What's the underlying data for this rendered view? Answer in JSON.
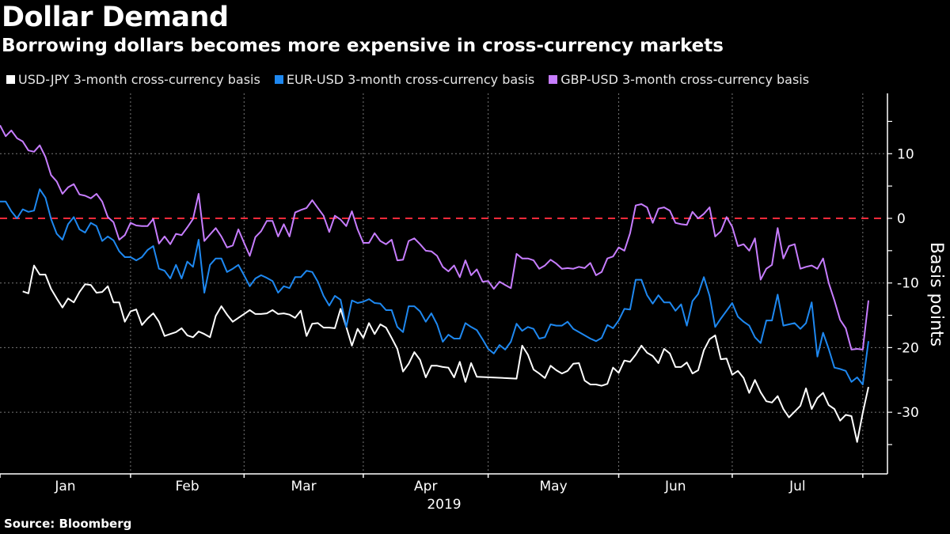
{
  "title": "Dollar Demand",
  "subtitle": "Borrowing dollars becomes more expensive in cross-currency markets",
  "source": "Source: Bloomberg",
  "chart_data": {
    "type": "line",
    "title": "Dollar Demand",
    "ylabel": "Basis points",
    "xlabel": "2019",
    "x_tick_labels": [
      "Jan",
      "Feb",
      "Mar",
      "Apr",
      "May",
      "Jun",
      "Jul"
    ],
    "y_ticks": [
      10,
      0,
      -10,
      -20,
      -30
    ],
    "ylim": [
      -38,
      19
    ],
    "grid": true,
    "legend_position": "top-left",
    "reference_line": {
      "value": 0,
      "color": "#ff2a3a",
      "style": "dashed"
    },
    "dates": [
      "2019-01-01",
      "2019-01-02",
      "2019-01-03",
      "2019-01-04",
      "2019-01-07",
      "2019-01-08",
      "2019-01-09",
      "2019-01-10",
      "2019-01-11",
      "2019-01-14",
      "2019-01-15",
      "2019-01-16",
      "2019-01-17",
      "2019-01-18",
      "2019-01-21",
      "2019-01-22",
      "2019-01-23",
      "2019-01-24",
      "2019-01-25",
      "2019-01-28",
      "2019-01-29",
      "2019-01-30",
      "2019-01-31",
      "2019-02-01",
      "2019-02-04",
      "2019-02-05",
      "2019-02-06",
      "2019-02-07",
      "2019-02-08",
      "2019-02-11",
      "2019-02-12",
      "2019-02-13",
      "2019-02-14",
      "2019-02-15",
      "2019-02-18",
      "2019-02-19",
      "2019-02-20",
      "2019-02-21",
      "2019-02-22",
      "2019-02-25",
      "2019-02-26",
      "2019-02-27",
      "2019-02-28",
      "2019-03-01",
      "2019-03-04",
      "2019-03-05",
      "2019-03-06",
      "2019-03-07",
      "2019-03-08",
      "2019-03-11",
      "2019-03-12",
      "2019-03-13",
      "2019-03-14",
      "2019-03-15",
      "2019-03-18",
      "2019-03-19",
      "2019-03-20",
      "2019-03-21",
      "2019-03-22",
      "2019-03-25",
      "2019-03-26",
      "2019-03-27",
      "2019-03-28",
      "2019-03-29",
      "2019-04-01",
      "2019-04-02",
      "2019-04-03",
      "2019-04-04",
      "2019-04-05",
      "2019-04-08",
      "2019-04-09",
      "2019-04-10",
      "2019-04-11",
      "2019-04-12",
      "2019-04-15",
      "2019-04-16",
      "2019-04-17",
      "2019-04-18",
      "2019-04-19",
      "2019-04-22",
      "2019-04-23",
      "2019-04-24",
      "2019-04-25",
      "2019-04-26",
      "2019-04-29",
      "2019-04-30",
      "2019-05-01",
      "2019-05-02",
      "2019-05-03",
      "2019-05-06",
      "2019-05-07",
      "2019-05-08",
      "2019-05-09",
      "2019-05-10",
      "2019-05-13",
      "2019-05-14",
      "2019-05-15",
      "2019-05-16",
      "2019-05-17",
      "2019-05-20",
      "2019-05-21",
      "2019-05-22",
      "2019-05-23",
      "2019-05-24",
      "2019-05-27",
      "2019-05-28",
      "2019-05-29",
      "2019-05-30",
      "2019-05-31",
      "2019-06-03",
      "2019-06-04",
      "2019-06-05",
      "2019-06-06",
      "2019-06-07",
      "2019-06-10",
      "2019-06-11",
      "2019-06-12",
      "2019-06-13",
      "2019-06-14",
      "2019-06-17",
      "2019-06-18",
      "2019-06-19",
      "2019-06-20",
      "2019-06-21",
      "2019-06-24",
      "2019-06-25",
      "2019-06-26",
      "2019-06-27",
      "2019-06-28",
      "2019-07-01",
      "2019-07-02",
      "2019-07-03",
      "2019-07-04",
      "2019-07-05",
      "2019-07-08",
      "2019-07-09",
      "2019-07-10",
      "2019-07-11",
      "2019-07-12",
      "2019-07-15",
      "2019-07-16",
      "2019-07-17",
      "2019-07-18",
      "2019-07-19",
      "2019-07-22",
      "2019-07-23",
      "2019-07-24",
      "2019-07-25",
      "2019-07-26",
      "2019-07-29",
      "2019-07-30",
      "2019-07-31",
      "2019-08-01",
      "2019-08-02"
    ],
    "series": [
      {
        "name": "USD-JPY 3-month cross-currency basis",
        "color": "#ffffff",
        "values": [
          null,
          null,
          null,
          null,
          -11.3,
          -11.6,
          -7.3,
          -8.7,
          -8.7,
          -10.9,
          -12.4,
          -13.8,
          -12.4,
          -13.0,
          -11.4,
          -10.2,
          -10.3,
          -11.5,
          -11.4,
          -10.5,
          -13.0,
          -13.0,
          -16.0,
          -14.4,
          -14.1,
          -16.5,
          -15.5,
          -14.7,
          -16.0,
          -18.2,
          -17.9,
          -17.6,
          -17.0,
          -18.1,
          -18.4,
          -17.5,
          -17.9,
          -18.4,
          -15.1,
          -13.6,
          -14.9,
          -16.0,
          -15.4,
          -14.8,
          -14.2,
          -14.8,
          -14.8,
          -14.7,
          -14.2,
          -14.8,
          -14.7,
          -14.9,
          -15.4,
          -14.3,
          -18.2,
          -16.3,
          -16.2,
          -16.9,
          -16.9,
          -17.0,
          -14.0,
          -16.8,
          -19.7,
          -17.1,
          -18.5,
          -16.2,
          -17.9,
          -16.4,
          -16.9,
          -18.5,
          -20.2,
          -23.7,
          -22.5,
          -20.7,
          -21.9,
          -24.6,
          -22.8,
          -22.8,
          -23.0,
          -23.1,
          -24.6,
          -22.2,
          -25.3,
          -22.4,
          -24.5,
          null,
          null,
          null,
          null,
          null,
          null,
          -24.8,
          -19.7,
          -21.1,
          -23.4,
          -24.0,
          -24.7,
          -22.8,
          -23.5,
          -24.0,
          -23.6,
          -22.5,
          -22.4,
          -25.1,
          -25.7,
          -25.7,
          -25.9,
          -25.6,
          -23.1,
          -23.9,
          -22.0,
          -22.2,
          -21.1,
          -19.7,
          -20.8,
          -21.3,
          -22.4,
          -20.2,
          -20.9,
          -23.0,
          -23.0,
          -22.3,
          -24.0,
          -23.5,
          -20.4,
          -18.7,
          -18.1,
          -21.8,
          -21.7,
          -24.2,
          -23.6,
          -24.7,
          -27.0,
          -25.0,
          -26.9,
          -28.3,
          -28.5,
          -27.5,
          -29.5,
          -30.8,
          -29.9,
          -29.0,
          -26.3,
          -29.5,
          -27.8,
          -27.0,
          -28.9,
          -29.5,
          -31.3,
          -30.4,
          -30.6,
          -34.6,
          -30.1,
          -26.1
        ]
      },
      {
        "name": "EUR-USD 3-month cross-currency basis",
        "color": "#1e88f0",
        "values": [
          2.6,
          2.6,
          1.1,
          0.0,
          1.4,
          1.0,
          1.2,
          4.5,
          3.2,
          -0.1,
          -2.4,
          -3.3,
          -0.9,
          0.2,
          -1.7,
          -2.2,
          -0.7,
          -1.2,
          -3.5,
          -2.8,
          -3.4,
          -5.1,
          -6.0,
          -6.0,
          -6.5,
          -6.0,
          -4.9,
          -4.3,
          -7.8,
          -8.1,
          -9.3,
          -7.2,
          -9.3,
          -6.7,
          -7.5,
          -3.3,
          -11.5,
          -7.2,
          -6.2,
          -6.2,
          -8.3,
          -7.8,
          -7.2,
          -8.8,
          -10.5,
          -9.3,
          -8.8,
          -9.2,
          -9.7,
          -11.5,
          -10.5,
          -10.8,
          -9.1,
          -9.1,
          -8.1,
          -8.3,
          -9.8,
          -12.0,
          -13.5,
          -12.0,
          -12.6,
          -16.8,
          -12.7,
          -13.1,
          -12.9,
          -12.5,
          -13.1,
          -13.2,
          -14.2,
          -14.2,
          -16.8,
          -17.6,
          -13.6,
          -13.6,
          -14.4,
          -16.0,
          -14.7,
          -16.4,
          -19.1,
          -18.0,
          -18.6,
          -18.6,
          -16.2,
          -16.8,
          -17.3,
          -18.7,
          -20.2,
          -20.9,
          -19.6,
          -20.3,
          -19.1,
          -16.3,
          -17.4,
          -16.8,
          -17.1,
          -18.6,
          -18.4,
          -16.4,
          -16.6,
          -16.6,
          -16.0,
          -17.1,
          -17.6,
          -18.1,
          -18.6,
          -19.0,
          -18.5,
          -16.5,
          -17.0,
          -15.8,
          -14.0,
          -14.1,
          -9.5,
          -9.5,
          -11.9,
          -13.2,
          -11.9,
          -13.0,
          -13.0,
          -14.3,
          -13.3,
          -16.6,
          -12.8,
          -11.7,
          -9.1,
          -12.0,
          -16.8,
          -15.5,
          -14.3,
          -13.1,
          -15.2,
          -16.0,
          -16.6,
          -18.4,
          -19.3,
          -15.8,
          -15.8,
          -11.8,
          -16.6,
          -16.4,
          -16.2,
          -17.1,
          -16.2,
          -13.0,
          -21.4,
          -17.7,
          -20.2,
          -23.1,
          -23.3,
          -23.6,
          -25.3,
          -24.6,
          -25.7,
          -19.0
        ]
      },
      {
        "name": "GBP-USD 3-month cross-currency basis",
        "color": "#c77dff",
        "values": [
          14.4,
          12.7,
          13.6,
          12.4,
          11.9,
          10.5,
          10.3,
          11.3,
          9.5,
          6.7,
          5.7,
          3.8,
          4.8,
          5.3,
          3.7,
          3.5,
          3.1,
          3.8,
          2.6,
          0.2,
          -0.6,
          -3.3,
          -2.6,
          -0.7,
          -1.1,
          -1.2,
          -1.2,
          -0.1,
          -3.9,
          -2.8,
          -4.0,
          -2.4,
          -2.6,
          -1.4,
          -0.1,
          3.8,
          -3.5,
          -2.5,
          -1.5,
          -2.8,
          -4.5,
          -4.2,
          -1.7,
          -3.8,
          -5.8,
          -2.9,
          -2.0,
          -0.4,
          -0.4,
          -2.8,
          -0.9,
          -2.8,
          0.9,
          1.3,
          1.6,
          2.8,
          1.6,
          0.4,
          -2.1,
          0.4,
          -0.2,
          -1.2,
          1.1,
          -1.7,
          -3.8,
          -3.8,
          -2.3,
          -3.5,
          -4.0,
          -3.3,
          -6.5,
          -6.4,
          -3.5,
          -3.1,
          -4.0,
          -5.0,
          -5.1,
          -5.8,
          -7.5,
          -8.2,
          -7.3,
          -9.1,
          -6.5,
          -8.8,
          -7.9,
          -9.8,
          -9.7,
          -10.9,
          -9.8,
          -10.3,
          -10.8,
          -5.5,
          -6.2,
          -6.2,
          -6.5,
          -7.8,
          -7.3,
          -6.4,
          -7.0,
          -7.8,
          -7.7,
          -7.8,
          -7.5,
          -7.7,
          -6.9,
          -8.8,
          -8.3,
          -6.2,
          -5.9,
          -4.5,
          -5.0,
          -2.3,
          2.0,
          2.2,
          1.7,
          -0.7,
          1.5,
          1.7,
          1.2,
          -0.7,
          -0.9,
          -1.0,
          1.0,
          0.0,
          0.7,
          1.7,
          -2.8,
          -2.0,
          0.2,
          -1.3,
          -4.3,
          -4.0,
          -5.0,
          -3.1,
          -9.5,
          -7.8,
          -7.2,
          -1.5,
          -6.2,
          -4.3,
          -4.0,
          -7.8,
          -7.5,
          -7.3,
          -7.8,
          -6.2,
          -10.0,
          -12.7,
          -15.7,
          -17.0,
          -20.3,
          -20.2,
          -20.3,
          -12.7
        ]
      }
    ]
  }
}
